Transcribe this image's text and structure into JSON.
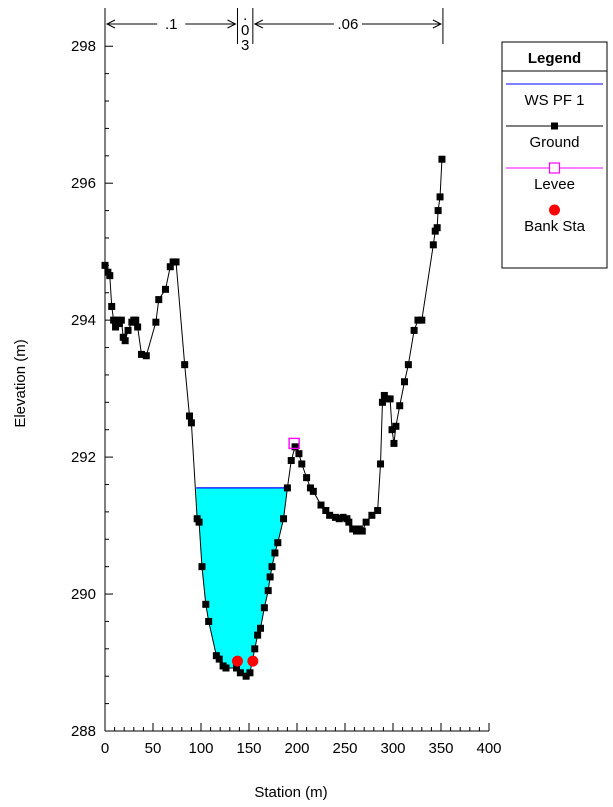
{
  "chart_data": {
    "type": "line",
    "xlabel": "Station (m)",
    "ylabel": "Elevation (m)",
    "xlim": [
      0,
      400
    ],
    "ylim": [
      288,
      298.5
    ],
    "x_ticks": [
      0,
      50,
      100,
      150,
      200,
      250,
      300,
      350,
      400
    ],
    "y_ticks": [
      288,
      290,
      292,
      294,
      296,
      298
    ],
    "legend": {
      "title": "Legend",
      "position": "top-right",
      "entries": [
        {
          "name": "WS PF 1",
          "color": "#0000ff",
          "marker": "none"
        },
        {
          "name": "Ground",
          "color": "#000000",
          "marker": "filled-square"
        },
        {
          "name": "Levee",
          "color": "#ff00ff",
          "marker": "open-square"
        },
        {
          "name": "Bank Sta",
          "color": "#ff0000",
          "marker": "filled-circle"
        }
      ]
    },
    "mannings_n": [
      {
        "label": ".1",
        "from": 0,
        "to": 138
      },
      {
        "label": ".03",
        "label_lines": [
          ".",
          "0",
          "3"
        ],
        "from": 138,
        "to": 154
      },
      {
        "label": ".06",
        "from": 154,
        "to": 352
      }
    ],
    "water_surface": {
      "name": "WS PF 1",
      "elevation": 291.55,
      "x_range": [
        95,
        190
      ],
      "fill_color": "#00ffff",
      "line_color": "#0000ff"
    },
    "series": [
      {
        "name": "Ground",
        "color": "#000000",
        "points": [
          [
            0,
            294.8
          ],
          [
            3,
            294.7
          ],
          [
            5,
            294.65
          ],
          [
            7,
            294.2
          ],
          [
            9,
            294.0
          ],
          [
            11,
            293.9
          ],
          [
            13,
            294.0
          ],
          [
            15,
            293.95
          ],
          [
            17,
            294.0
          ],
          [
            19,
            293.75
          ],
          [
            21,
            293.7
          ],
          [
            24,
            293.85
          ],
          [
            28,
            293.97
          ],
          [
            30,
            294.0
          ],
          [
            32,
            294.0
          ],
          [
            34,
            293.9
          ],
          [
            38,
            293.5
          ],
          [
            43,
            293.48
          ],
          [
            53,
            293.97
          ],
          [
            56,
            294.3
          ],
          [
            63,
            294.45
          ],
          [
            68,
            294.78
          ],
          [
            71,
            294.85
          ],
          [
            74,
            294.85
          ],
          [
            83,
            293.35
          ],
          [
            88,
            292.6
          ],
          [
            90,
            292.5
          ],
          [
            96,
            291.1
          ],
          [
            98,
            291.05
          ],
          [
            101,
            290.4
          ],
          [
            105,
            289.85
          ],
          [
            108,
            289.6
          ],
          [
            116,
            289.1
          ],
          [
            119,
            289.05
          ],
          [
            123,
            288.95
          ],
          [
            126,
            288.92
          ],
          [
            137,
            288.92
          ],
          [
            141,
            288.85
          ],
          [
            147,
            288.8
          ],
          [
            151,
            288.85
          ],
          [
            156,
            289.2
          ],
          [
            159,
            289.4
          ],
          [
            162,
            289.5
          ],
          [
            166,
            289.8
          ],
          [
            170,
            290.05
          ],
          [
            172,
            290.25
          ],
          [
            174,
            290.4
          ],
          [
            177,
            290.6
          ],
          [
            180,
            290.75
          ],
          [
            186,
            291.1
          ],
          [
            190,
            291.55
          ],
          [
            194,
            291.95
          ],
          [
            198,
            292.15
          ],
          [
            202,
            292.05
          ],
          [
            205,
            291.9
          ],
          [
            210,
            291.7
          ],
          [
            214,
            291.55
          ],
          [
            217,
            291.5
          ],
          [
            225,
            291.3
          ],
          [
            230,
            291.22
          ],
          [
            234,
            291.15
          ],
          [
            240,
            291.12
          ],
          [
            244,
            291.1
          ],
          [
            248,
            291.12
          ],
          [
            252,
            291.1
          ],
          [
            254,
            291.05
          ],
          [
            258,
            290.95
          ],
          [
            262,
            290.92
          ],
          [
            265,
            290.95
          ],
          [
            268,
            290.92
          ],
          [
            272,
            291.05
          ],
          [
            278,
            291.15
          ],
          [
            284,
            291.22
          ],
          [
            287,
            291.9
          ],
          [
            289,
            292.8
          ],
          [
            291,
            292.9
          ],
          [
            293,
            292.85
          ],
          [
            297,
            292.85
          ],
          [
            299,
            292.4
          ],
          [
            301,
            292.2
          ],
          [
            303,
            292.45
          ],
          [
            307,
            292.75
          ],
          [
            312,
            293.1
          ],
          [
            316,
            293.35
          ],
          [
            322,
            293.85
          ],
          [
            326,
            294.0
          ],
          [
            330,
            294.0
          ],
          [
            342,
            295.1
          ],
          [
            344,
            295.3
          ],
          [
            346,
            295.35
          ],
          [
            347,
            295.6
          ],
          [
            349,
            295.8
          ],
          [
            351,
            296.35
          ]
        ]
      },
      {
        "name": "Levee",
        "color": "#ff00ff",
        "points": [
          [
            197,
            292.2
          ]
        ]
      },
      {
        "name": "Bank Sta",
        "color": "#ff0000",
        "points": [
          [
            138,
            289.02
          ],
          [
            154,
            289.02
          ]
        ]
      }
    ]
  }
}
